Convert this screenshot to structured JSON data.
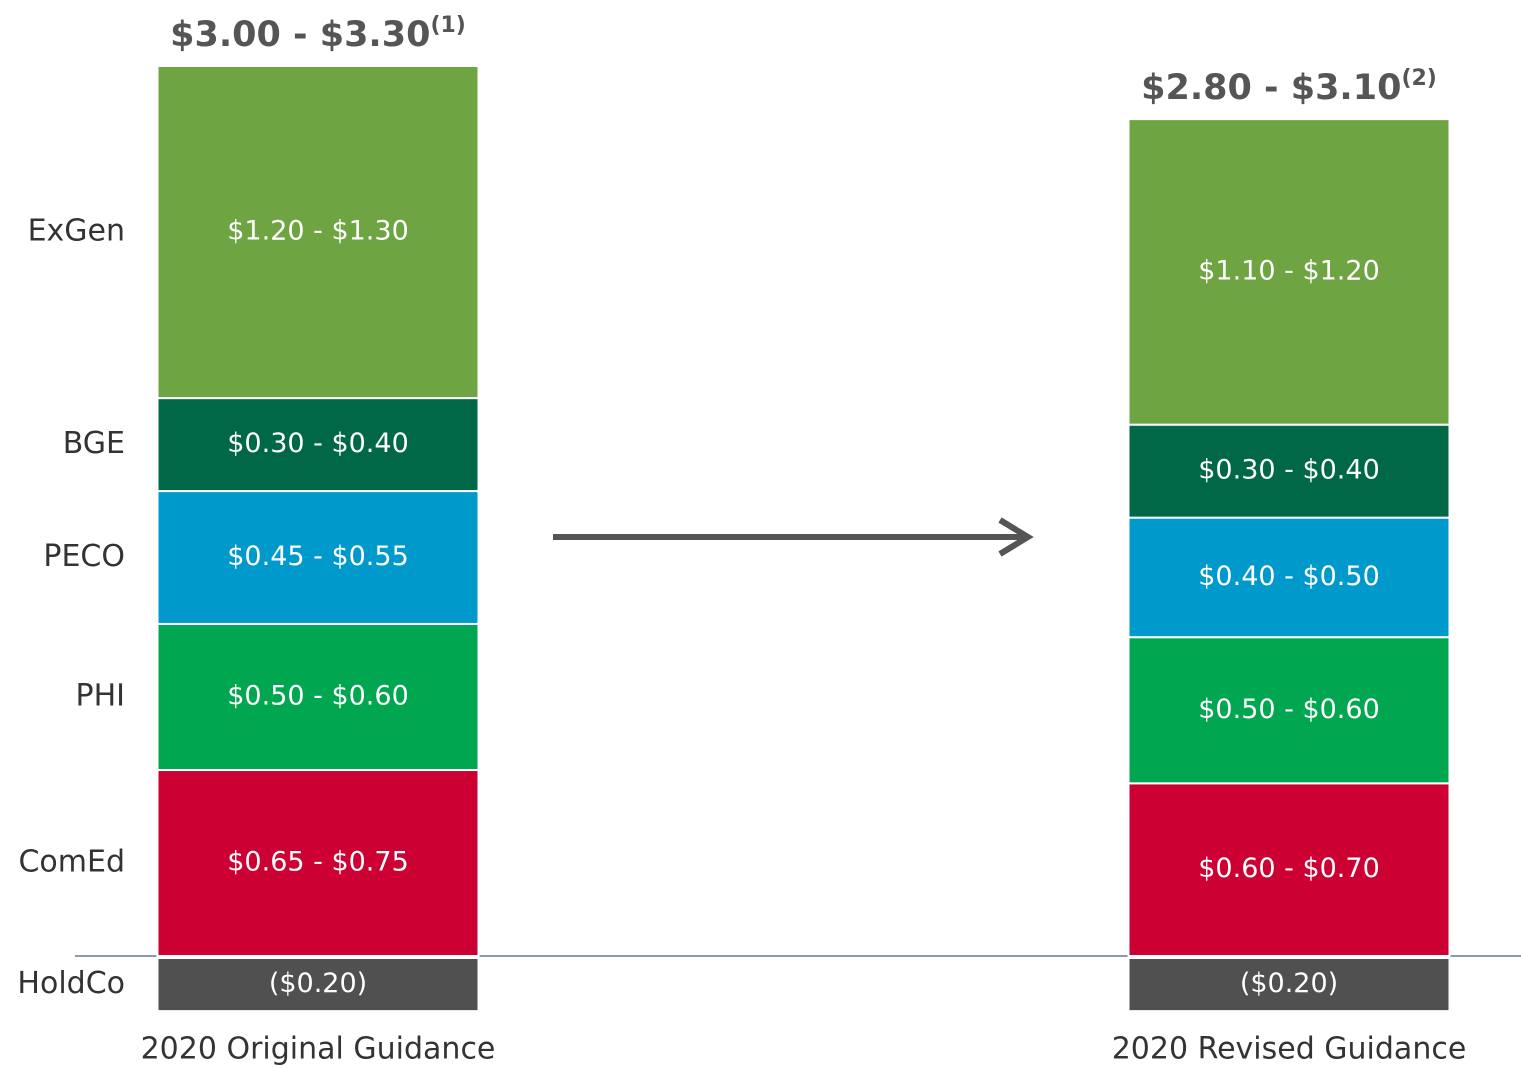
{
  "chart_data": {
    "type": "stacked_bar",
    "categories": [
      "2020 Original Guidance",
      "2020 Revised Guidance"
    ],
    "totals": [
      {
        "label": "$3.00 - $3.30",
        "note": "(1)"
      },
      {
        "label": "$2.80 - $3.10",
        "note": "(2)"
      }
    ],
    "series": [
      {
        "name": "HoldCo",
        "color": "#505050",
        "values": [
          -0.2,
          -0.2
        ],
        "value_labels": [
          "($0.20)",
          "($0.20)"
        ]
      },
      {
        "name": "ComEd",
        "color": "#cc0033",
        "values": [
          0.7,
          0.65
        ],
        "value_labels": [
          "$0.65 - $0.75",
          "$0.60 - $0.70"
        ]
      },
      {
        "name": "PHI",
        "color": "#00a650",
        "values": [
          0.55,
          0.55
        ],
        "value_labels": [
          "$0.50 - $0.60",
          "$0.50 - $0.60"
        ]
      },
      {
        "name": "PECO",
        "color": "#0099cc",
        "values": [
          0.5,
          0.45
        ],
        "value_labels": [
          "$0.45 - $0.55",
          "$0.40 - $0.50"
        ]
      },
      {
        "name": "BGE",
        "color": "#006847",
        "values": [
          0.35,
          0.35
        ],
        "value_labels": [
          "$0.30 - $0.40",
          "$0.30 - $0.40"
        ]
      },
      {
        "name": "ExGen",
        "color": "#6ea442",
        "values": [
          1.25,
          1.15
        ],
        "value_labels": [
          "$1.20 - $1.30",
          "$1.10 - $1.20"
        ]
      }
    ]
  }
}
